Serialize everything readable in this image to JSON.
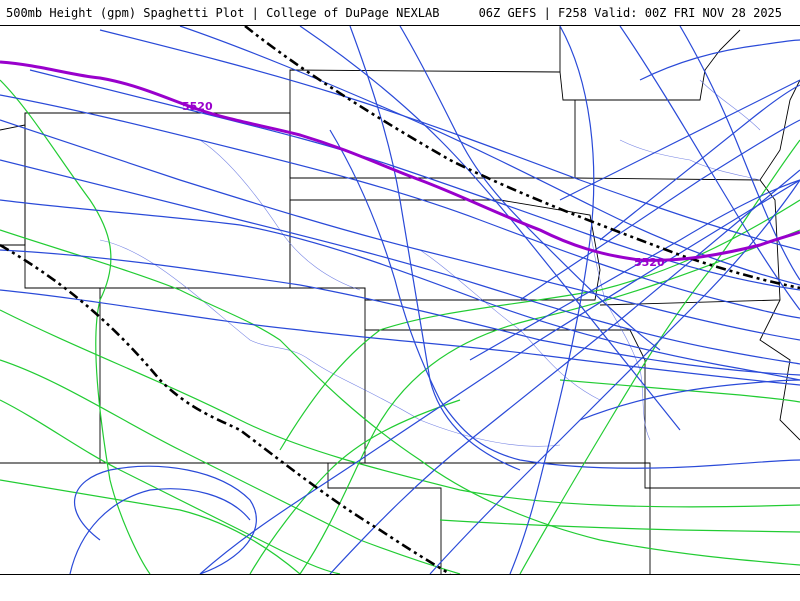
{
  "header": {
    "title": "500mb Height (gpm) Spaghetti Plot | College of DuPage NEXLAB",
    "run_info": "06Z GEFS | F258 Valid: 00Z FRI NOV 28 2025"
  },
  "contour_labels": [
    "5520",
    "5520"
  ],
  "legend": {
    "member_color_5520": "#2a4ad8",
    "member_color_5580": "#22cc33",
    "mean_5520_color": "#9900cc",
    "climo_color": "#000000"
  },
  "colors": {
    "background": "#ffffff",
    "state_borders": "#000000",
    "rivers": "#5566dd"
  }
}
